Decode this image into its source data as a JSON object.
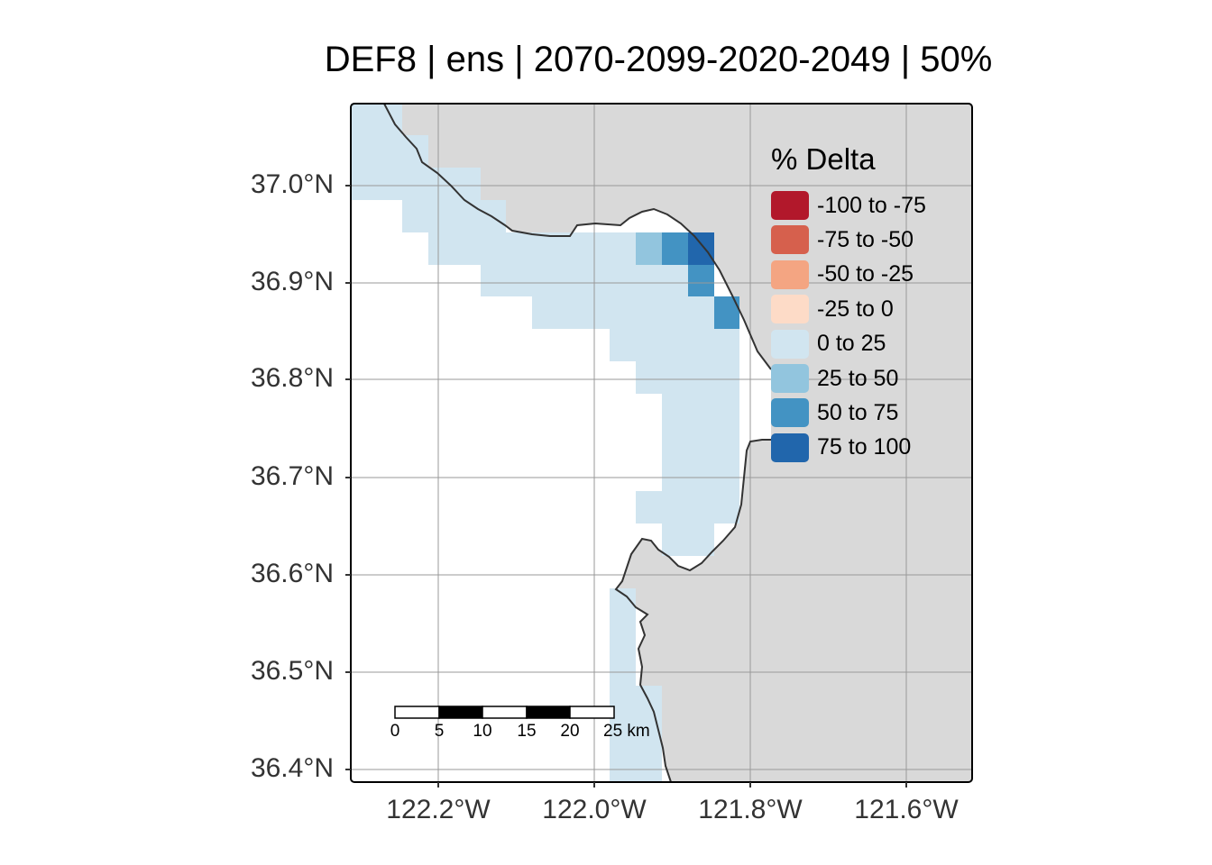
{
  "title": "DEF8 | ens | 2070-2099-2020-2049 | 50%",
  "axes": {
    "y_labels": [
      "37.0°N",
      "36.9°N",
      "36.8°N",
      "36.7°N",
      "36.6°N",
      "36.5°N",
      "36.4°N"
    ],
    "x_labels": [
      "122.2°W",
      "122.0°W",
      "121.8°W",
      "121.6°W"
    ]
  },
  "legend": {
    "title": "% Delta",
    "items": [
      {
        "label": "-100 to -75",
        "color": "#b2182b"
      },
      {
        "label": "-75 to -50",
        "color": "#d6604d"
      },
      {
        "label": "-50 to -25",
        "color": "#f4a582"
      },
      {
        "label": "-25 to 0",
        "color": "#fddbc7"
      },
      {
        "label": "0 to 25",
        "color": "#d1e5f0"
      },
      {
        "label": "25 to 50",
        "color": "#92c5de"
      },
      {
        "label": "50 to 75",
        "color": "#4393c3"
      },
      {
        "label": "75 to 100",
        "color": "#2166ac"
      }
    ]
  },
  "scale_bar": {
    "labels": [
      "0",
      "5",
      "10",
      "15",
      "20",
      "25 km"
    ]
  },
  "colors": {
    "land": "#d9d9d9",
    "water": "#ffffff",
    "coastline": "#333333",
    "grid": "#999999"
  }
}
